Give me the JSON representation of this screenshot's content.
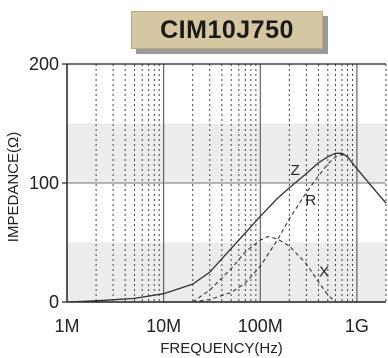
{
  "title": "CIM10J750",
  "chart_data": {
    "type": "line",
    "xlabel": "FREQUENCY(Hz)",
    "ylabel": "IMPEDANCE(Ω)",
    "x_scale": "log",
    "xlim": [
      1000000,
      2000000000
    ],
    "ylim": [
      0,
      200
    ],
    "x_ticks": [
      {
        "value": 1000000,
        "label": "1M"
      },
      {
        "value": 10000000,
        "label": "10M"
      },
      {
        "value": 100000000,
        "label": "100M"
      },
      {
        "value": 1000000000,
        "label": "1G"
      }
    ],
    "y_ticks": [
      {
        "value": 0,
        "label": "0"
      },
      {
        "value": 100,
        "label": "100"
      },
      {
        "value": 200,
        "label": "200"
      }
    ],
    "shaded_bands": [
      [
        0,
        50
      ],
      [
        100,
        150
      ]
    ],
    "grid": true,
    "series": [
      {
        "name": "Z",
        "style": "solid",
        "x": [
          1000000,
          2000000,
          5000000,
          10000000,
          20000000,
          30000000,
          50000000,
          70000000,
          100000000,
          150000000,
          200000000,
          300000000,
          400000000,
          500000000,
          600000000,
          700000000,
          800000000,
          1000000000,
          1500000000,
          2000000000
        ],
        "values": [
          0,
          1,
          3,
          7,
          15,
          25,
          45,
          58,
          72,
          87,
          96,
          108,
          117,
          122,
          125,
          125,
          122,
          112,
          95,
          83
        ]
      },
      {
        "name": "R",
        "style": "dashed",
        "x": [
          20000000,
          30000000,
          50000000,
          70000000,
          100000000,
          150000000,
          200000000,
          300000000,
          400000000,
          500000000,
          600000000,
          700000000,
          800000000,
          1000000000,
          1500000000,
          2000000000
        ],
        "values": [
          0,
          2,
          8,
          16,
          30,
          52,
          70,
          92,
          106,
          116,
          122,
          124,
          122,
          112,
          95,
          83
        ]
      },
      {
        "name": "X",
        "style": "dashed",
        "x": [
          20000000,
          30000000,
          50000000,
          70000000,
          100000000,
          120000000,
          150000000,
          200000000,
          300000000,
          400000000,
          500000000,
          600000000
        ],
        "values": [
          0,
          10,
          28,
          42,
          52,
          55,
          53,
          47,
          32,
          17,
          6,
          0
        ]
      }
    ]
  }
}
